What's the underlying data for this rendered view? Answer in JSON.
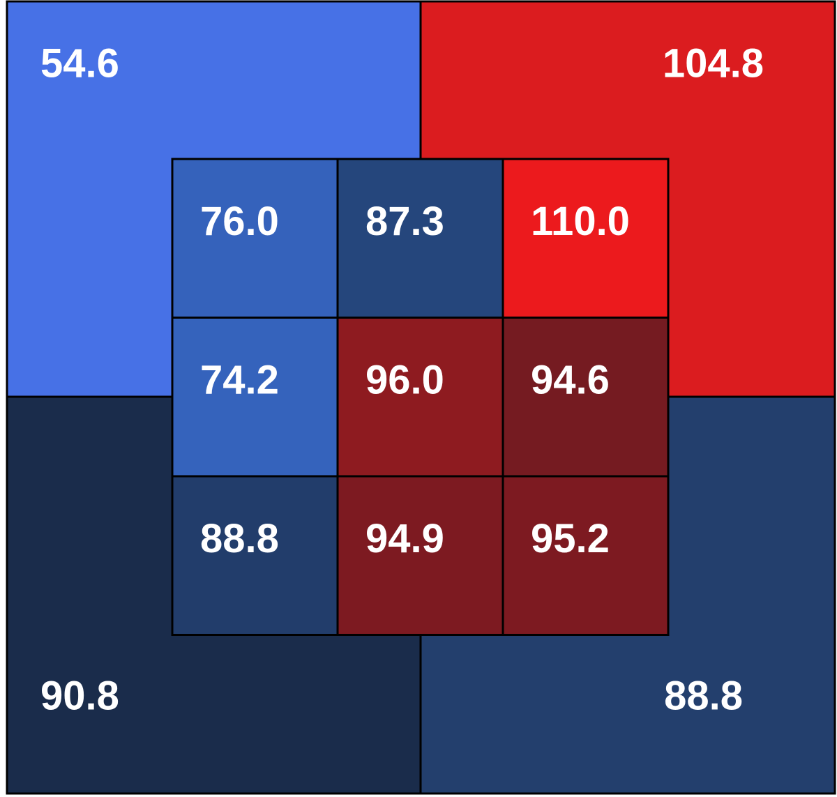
{
  "chart_data": {
    "type": "heatmap",
    "title": "",
    "xlabel": "",
    "ylabel": "",
    "outer_zones": [
      {
        "position": "top-left",
        "value": "54.6",
        "color": "#4771e6"
      },
      {
        "position": "top-right",
        "value": "104.8",
        "color": "#db1c1f"
      },
      {
        "position": "bottom-left",
        "value": "90.8",
        "color": "#1a2c4b"
      },
      {
        "position": "bottom-right",
        "value": "88.8",
        "color": "#233f6d"
      }
    ],
    "inner_grid": {
      "rows": 3,
      "cols": 3,
      "cells": [
        [
          {
            "value": "76.0",
            "color": "#3562bb"
          },
          {
            "value": "87.3",
            "color": "#25467c"
          },
          {
            "value": "110.0",
            "color": "#ec1a1d"
          }
        ],
        [
          {
            "value": "74.2",
            "color": "#3563bc"
          },
          {
            "value": "96.0",
            "color": "#8e1b20"
          },
          {
            "value": "94.6",
            "color": "#751b21"
          }
        ],
        [
          {
            "value": "88.8",
            "color": "#223d6b"
          },
          {
            "value": "94.9",
            "color": "#7d1a21"
          },
          {
            "value": "95.2",
            "color": "#7d1a21"
          }
        ]
      ]
    }
  }
}
